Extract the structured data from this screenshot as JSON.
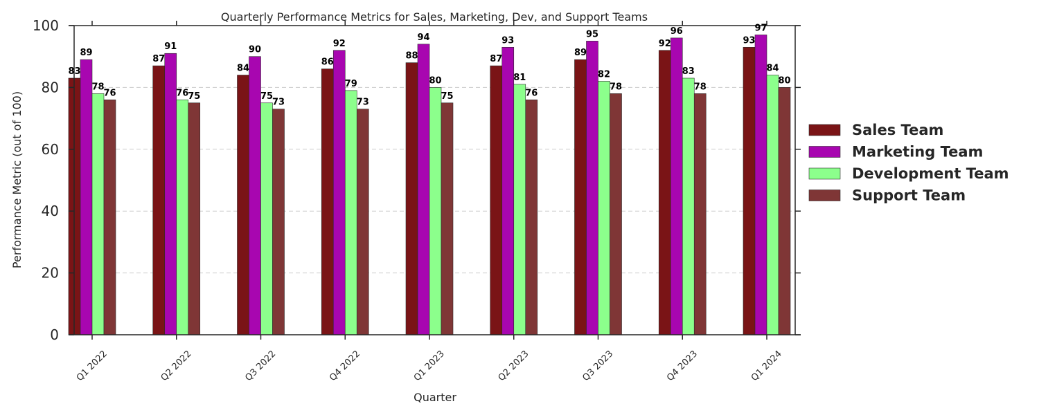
{
  "chart_data": {
    "type": "bar",
    "title": "Quarterly Performance Metrics for Sales, Marketing, Dev, and Support Teams",
    "xlabel": "Quarter",
    "ylabel": "Performance Metric (out of 100)",
    "ylim": [
      0,
      100
    ],
    "yticks": [
      0,
      20,
      40,
      60,
      80,
      100
    ],
    "grid": "horizontal dashed",
    "legend_placement": "right",
    "categories": [
      "Q1 2022",
      "Q2 2022",
      "Q3 2022",
      "Q4 2022",
      "Q1 2023",
      "Q2 2023",
      "Q3 2023",
      "Q4 2023",
      "Q1 2024"
    ],
    "series": [
      {
        "name": "Sales Team",
        "color": "#7a1416",
        "values": [
          83,
          87,
          84,
          86,
          88,
          87,
          89,
          92,
          93
        ]
      },
      {
        "name": "Marketing Team",
        "color": "#a806b0",
        "values": [
          89,
          91,
          90,
          92,
          94,
          93,
          95,
          96,
          97
        ]
      },
      {
        "name": "Development Team",
        "color": "#8cff8c",
        "values": [
          78,
          76,
          75,
          79,
          80,
          81,
          82,
          83,
          84
        ]
      },
      {
        "name": "Support Team",
        "color": "#7f3636",
        "values": [
          76,
          75,
          73,
          73,
          75,
          76,
          78,
          78,
          80
        ]
      }
    ]
  }
}
